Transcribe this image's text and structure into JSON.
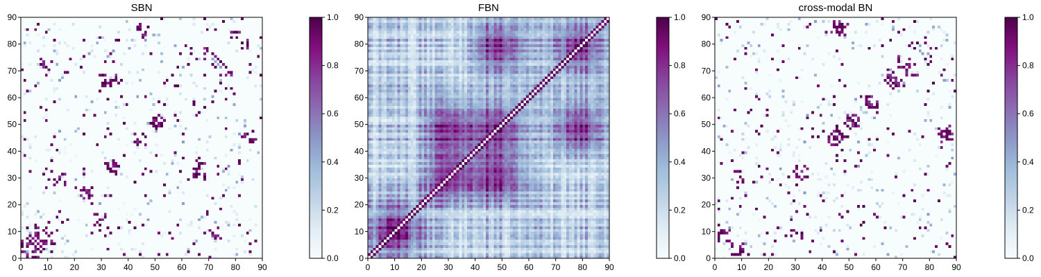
{
  "chart_data": [
    {
      "type": "heatmap",
      "title": "SBN",
      "xlabel": "",
      "ylabel": "",
      "xlim": [
        0,
        90
      ],
      "ylim": [
        0,
        90
      ],
      "x_ticks": [
        "0",
        "10",
        "20",
        "30",
        "40",
        "50",
        "60",
        "70",
        "80",
        "90"
      ],
      "y_ticks": [
        "0",
        "10",
        "20",
        "30",
        "40",
        "50",
        "60",
        "70",
        "80",
        "90"
      ],
      "colorbar": {
        "range": [
          0,
          1
        ],
        "ticks": [
          "0.0",
          "0.2",
          "0.4",
          "0.6",
          "0.8",
          "1.0"
        ]
      },
      "colormap": [
        "#f7fcfd",
        "#e0ecf4",
        "#bfd3e6",
        "#9ebcda",
        "#8c96c6",
        "#8c6bb1",
        "#88419d",
        "#810f7c",
        "#4d004b"
      ],
      "matrix_size": 90,
      "pattern": "sparse",
      "clusters": [
        [
          44,
          44
        ],
        [
          50,
          51
        ],
        [
          85,
          45
        ],
        [
          14,
          29
        ],
        [
          33,
          33
        ],
        [
          67,
          33
        ],
        [
          24,
          24
        ],
        [
          31,
          66
        ],
        [
          9,
          72
        ],
        [
          80,
          82
        ],
        [
          76,
          70
        ],
        [
          10,
          7
        ],
        [
          4,
          1
        ],
        [
          6,
          4
        ]
      ]
    },
    {
      "type": "heatmap",
      "title": "FBN",
      "xlabel": "",
      "ylabel": "",
      "xlim": [
        0,
        90
      ],
      "ylim": [
        0,
        90
      ],
      "x_ticks": [
        "0",
        "10",
        "20",
        "30",
        "40",
        "50",
        "60",
        "70",
        "80",
        "90"
      ],
      "y_ticks": [
        "0",
        "10",
        "20",
        "30",
        "40",
        "50",
        "60",
        "70",
        "80",
        "90"
      ],
      "colorbar": {
        "range": [
          0,
          1
        ],
        "ticks": [
          "0.0",
          "0.2",
          "0.4",
          "0.6",
          "0.8",
          "1.0"
        ]
      },
      "colormap": [
        "#f7fcfd",
        "#e0ecf4",
        "#bfd3e6",
        "#9ebcda",
        "#8c96c6",
        "#8c6bb1",
        "#88419d",
        "#810f7c",
        "#4d004b"
      ],
      "matrix_size": 90,
      "pattern": "dense",
      "clusters": [
        [
          48,
          48
        ],
        [
          10,
          10
        ],
        [
          78,
          78
        ],
        [
          30,
          30
        ],
        [
          48,
          30
        ],
        [
          30,
          48
        ],
        [
          78,
          48
        ],
        [
          48,
          78
        ]
      ]
    },
    {
      "type": "heatmap",
      "title": "cross-modal BN",
      "xlabel": "",
      "ylabel": "",
      "xlim": [
        0,
        90
      ],
      "ylim": [
        0,
        90
      ],
      "x_ticks": [
        "0",
        "10",
        "20",
        "30",
        "40",
        "50",
        "60",
        "70",
        "80",
        "90"
      ],
      "y_ticks": [
        "0",
        "10",
        "20",
        "30",
        "40",
        "50",
        "60",
        "70",
        "80",
        "90"
      ],
      "colorbar": {
        "range": [
          0,
          1
        ],
        "ticks": [
          "0.0",
          "0.2",
          "0.4",
          "0.6",
          "0.8",
          "1.0"
        ]
      },
      "colormap": [
        "#f7fcfd",
        "#e0ecf4",
        "#bfd3e6",
        "#9ebcda",
        "#8c96c6",
        "#8c6bb1",
        "#88419d",
        "#810f7c",
        "#4d004b"
      ],
      "matrix_size": 90,
      "pattern": "sparse",
      "clusters": [
        [
          44,
          44
        ],
        [
          46,
          46
        ],
        [
          58,
          58
        ],
        [
          86,
          45
        ],
        [
          50,
          51
        ],
        [
          32,
          32
        ],
        [
          8,
          3
        ],
        [
          30,
          8
        ],
        [
          66,
          65
        ],
        [
          47,
          85
        ],
        [
          73,
          70
        ]
      ]
    }
  ]
}
